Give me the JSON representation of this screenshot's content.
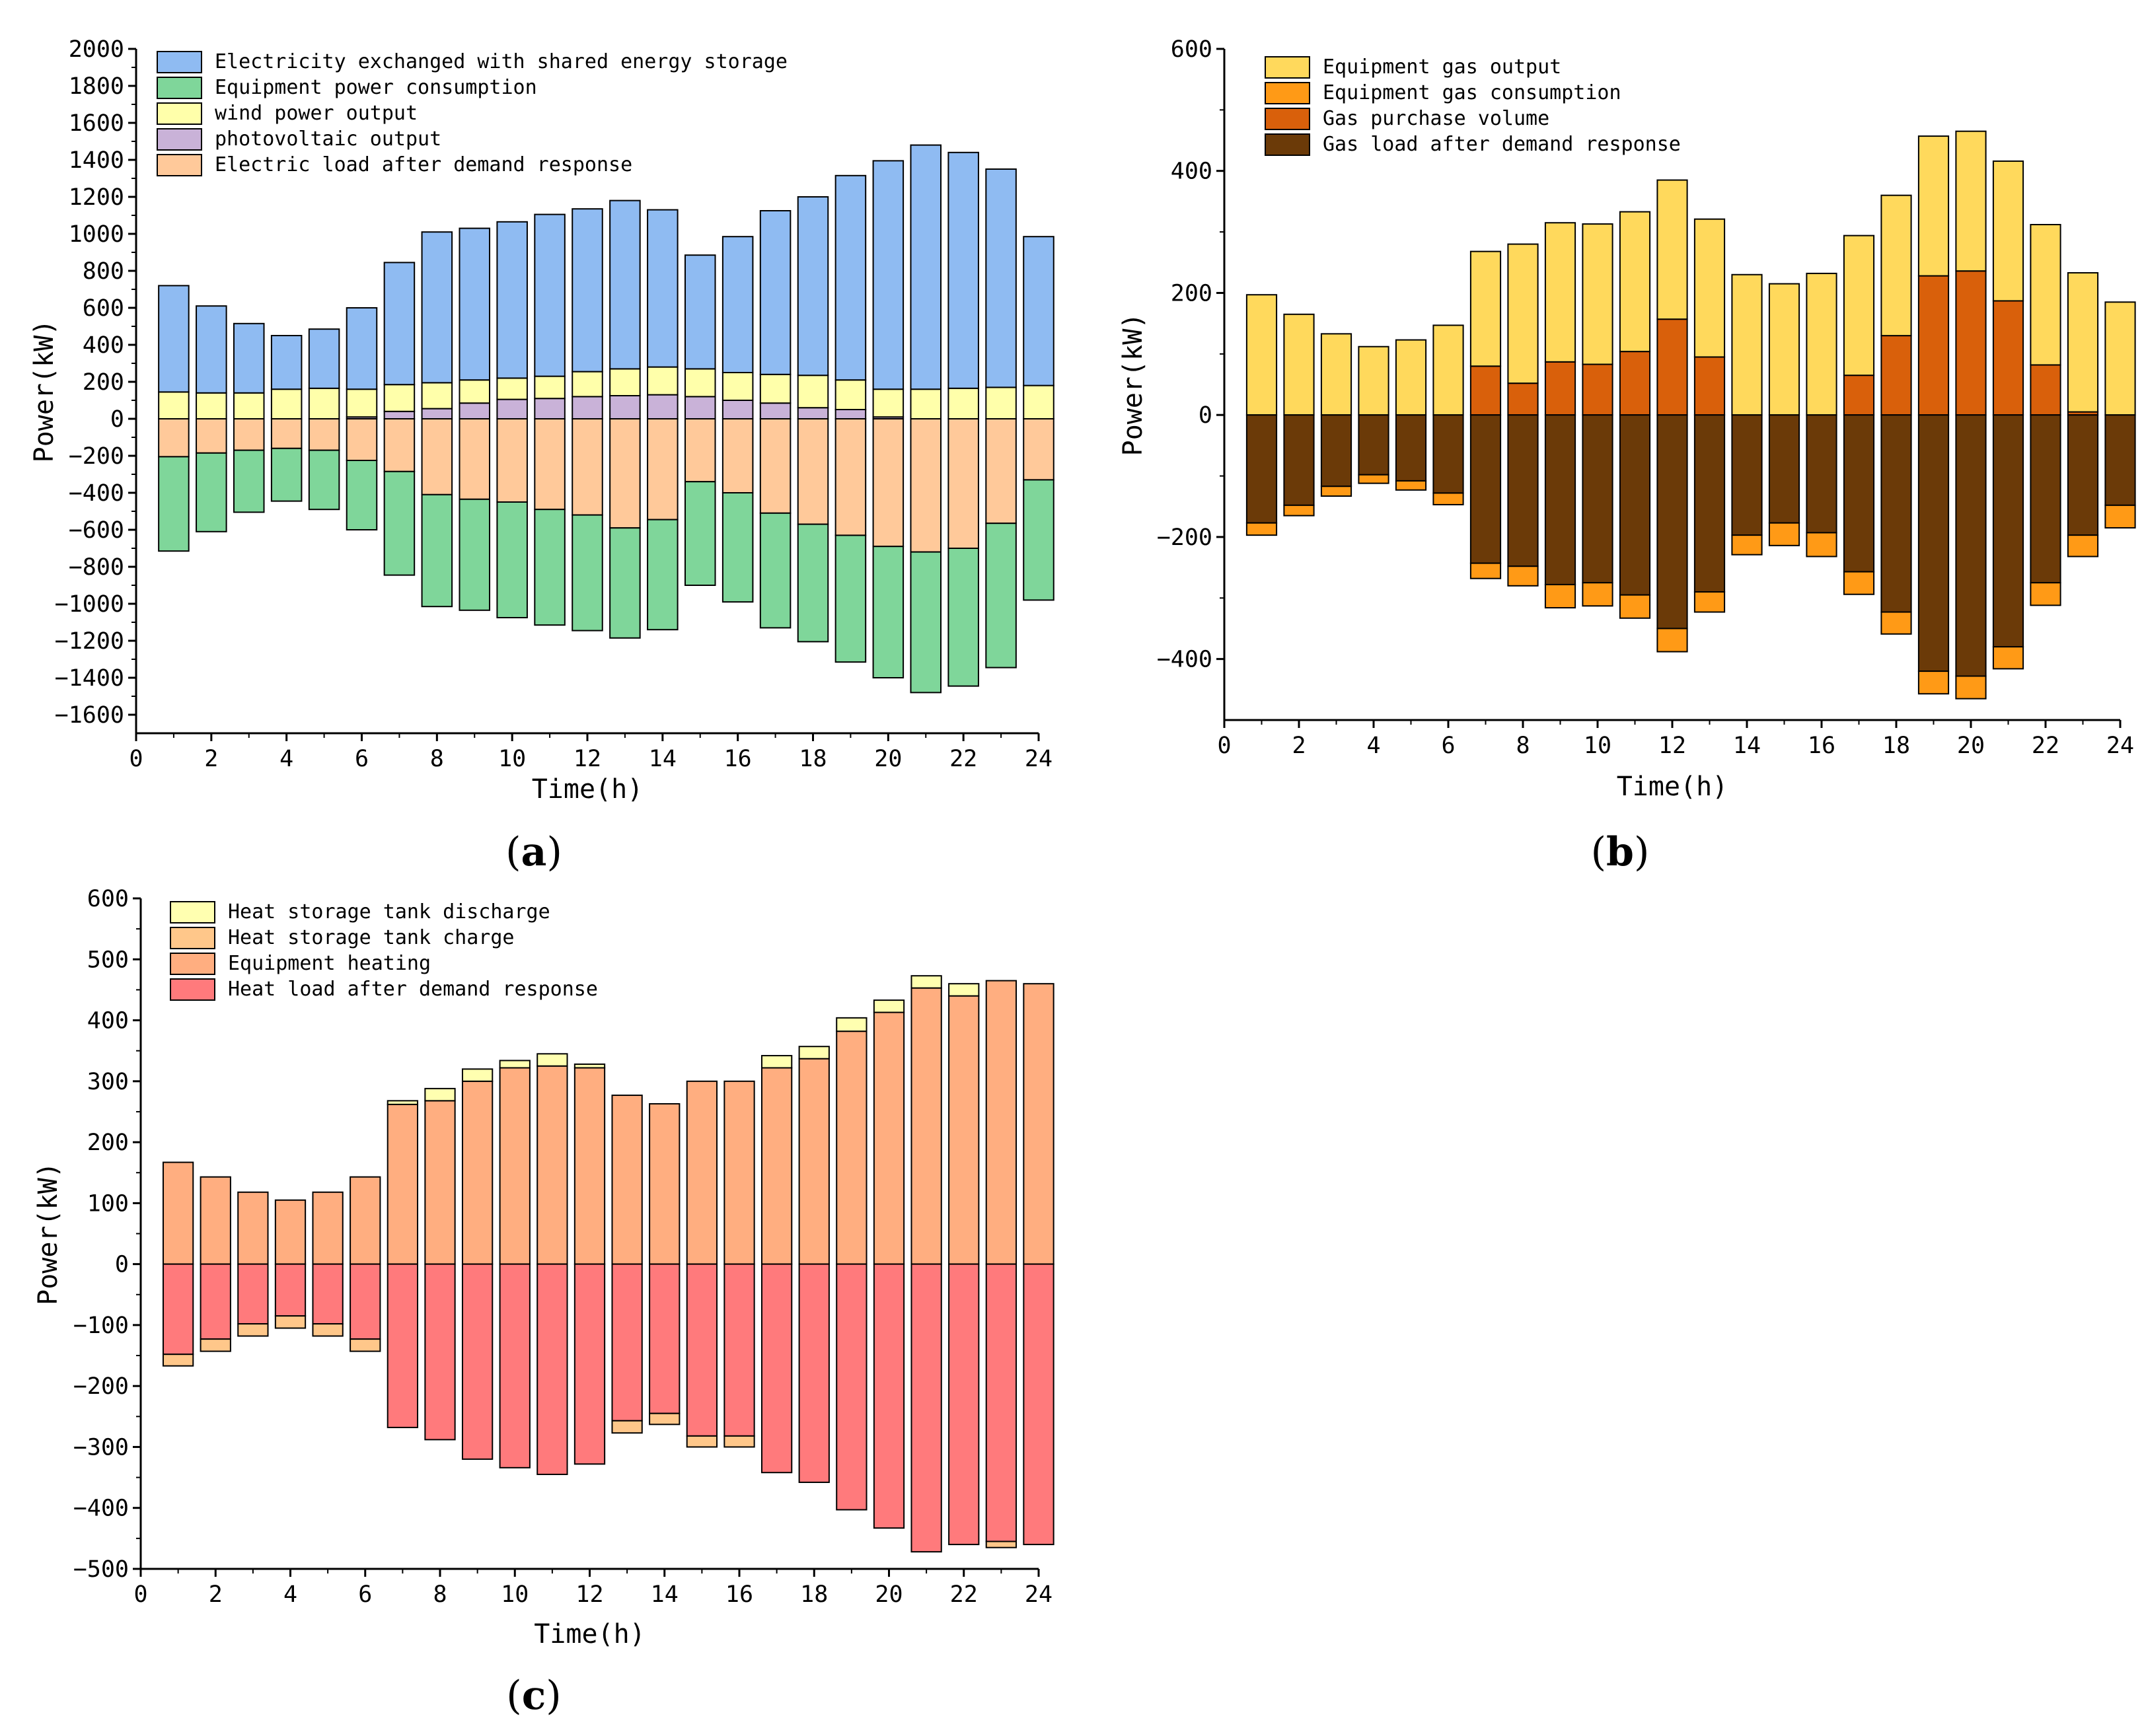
{
  "chart_data": [
    {
      "type": "bar",
      "id": "a",
      "panel_label": "a",
      "xlabel": "Time(h)",
      "ylabel": "Power(kW)",
      "xlim": [
        0,
        24
      ],
      "ylim": [
        -1700,
        2000
      ],
      "yticks": [
        2000,
        1800,
        1600,
        1400,
        1200,
        1000,
        800,
        600,
        400,
        200,
        0,
        -200,
        -400,
        -600,
        -800,
        -1000,
        -1200,
        -1400,
        -1600
      ],
      "xticks": [
        0,
        2,
        4,
        6,
        8,
        10,
        12,
        14,
        16,
        18,
        20,
        22,
        24
      ],
      "legend_position": "top-left",
      "categories": [
        1,
        2,
        3,
        4,
        5,
        6,
        7,
        8,
        9,
        10,
        11,
        12,
        13,
        14,
        15,
        16,
        17,
        18,
        19,
        20,
        21,
        22,
        23,
        24
      ],
      "positive_series": [
        {
          "name": "photovoltaic output",
          "color": "#C9B2D8",
          "values": [
            0,
            0,
            0,
            0,
            0,
            10,
            40,
            55,
            85,
            105,
            110,
            120,
            125,
            130,
            120,
            100,
            85,
            60,
            50,
            10,
            0,
            0,
            0,
            0
          ]
        },
        {
          "name": "wind power output",
          "color": "#FFFFAA",
          "values": [
            145,
            140,
            140,
            160,
            165,
            150,
            145,
            140,
            125,
            115,
            120,
            135,
            145,
            150,
            150,
            150,
            155,
            175,
            160,
            150,
            160,
            165,
            170,
            180
          ]
        },
        {
          "name": "Electricity exchanged with shared energy storage",
          "color": "#8FBBF2",
          "values": [
            575,
            470,
            375,
            290,
            320,
            440,
            660,
            815,
            820,
            845,
            875,
            880,
            910,
            850,
            615,
            735,
            885,
            965,
            1105,
            1235,
            1320,
            1275,
            1180,
            805
          ]
        }
      ],
      "negative_series": [
        {
          "name": "Electric load after demand response",
          "color": "#FFC99A",
          "values": [
            -205,
            -185,
            -170,
            -160,
            -170,
            -225,
            -285,
            -410,
            -435,
            -450,
            -490,
            -520,
            -590,
            -545,
            -340,
            -400,
            -510,
            -570,
            -630,
            -690,
            -720,
            -700,
            -565,
            -330
          ]
        },
        {
          "name": "Equipment power consumption",
          "color": "#7FD69A",
          "values": [
            -510,
            -425,
            -335,
            -285,
            -320,
            -375,
            -560,
            -605,
            -600,
            -625,
            -625,
            -625,
            -595,
            -595,
            -560,
            -590,
            -620,
            -635,
            -685,
            -710,
            -760,
            -745,
            -780,
            -650
          ]
        }
      ],
      "legend": [
        {
          "name": "Electricity exchanged with shared energy storage",
          "color": "#8FBBF2"
        },
        {
          "name": "Equipment power consumption",
          "color": "#7FD69A"
        },
        {
          "name": "wind power output",
          "color": "#FFFFAA"
        },
        {
          "name": "photovoltaic output",
          "color": "#C9B2D8"
        },
        {
          "name": "Electric load after demand response",
          "color": "#FFC99A"
        }
      ]
    },
    {
      "type": "bar",
      "id": "b",
      "panel_label": "b",
      "xlabel": "Time(h)",
      "ylabel": "Power(kW)",
      "xlim": [
        0,
        24
      ],
      "ylim": [
        -500,
        600
      ],
      "yticks": [
        600,
        400,
        200,
        0,
        -200,
        -400
      ],
      "xticks": [
        0,
        2,
        4,
        6,
        8,
        10,
        12,
        14,
        16,
        18,
        20,
        22,
        24
      ],
      "legend_position": "top-left",
      "categories": [
        1,
        2,
        3,
        4,
        5,
        6,
        7,
        8,
        9,
        10,
        11,
        12,
        13,
        14,
        15,
        16,
        17,
        18,
        19,
        20,
        21,
        22,
        23,
        24
      ],
      "positive_series": [
        {
          "name": "Gas purchase volume",
          "color": "#D9600B",
          "values": [
            0,
            0,
            0,
            0,
            0,
            0,
            80,
            52,
            87,
            83,
            104,
            157,
            95,
            0,
            0,
            0,
            65,
            130,
            228,
            236,
            187,
            82,
            5,
            0
          ]
        },
        {
          "name": "Equipment gas output",
          "color": "#FFD95C",
          "values": [
            197,
            165,
            133,
            112,
            123,
            147,
            188,
            228,
            228,
            230,
            229,
            228,
            226,
            230,
            215,
            232,
            229,
            230,
            229,
            229,
            229,
            230,
            228,
            185
          ]
        }
      ],
      "negative_series": [
        {
          "name": "Gas load after demand response",
          "color": "#6B3A08",
          "values": [
            -177,
            -148,
            -117,
            -98,
            -108,
            -128,
            -243,
            -248,
            -278,
            -275,
            -295,
            -350,
            -290,
            -197,
            -177,
            -193,
            -257,
            -323,
            -420,
            -428,
            -380,
            -275,
            -197,
            -148
          ]
        },
        {
          "name": "Equipment gas consumption",
          "color": "#FF9A16",
          "values": [
            -20,
            -17,
            -16,
            -14,
            -15,
            -19,
            -25,
            -32,
            -38,
            -38,
            -38,
            -38,
            -33,
            -32,
            -37,
            -39,
            -37,
            -36,
            -37,
            -37,
            -36,
            -37,
            -35,
            -37
          ]
        }
      ],
      "legend": [
        {
          "name": "Equipment gas output",
          "color": "#FFD95C"
        },
        {
          "name": "Equipment gas consumption",
          "color": "#FF9A16"
        },
        {
          "name": "Gas purchase volume",
          "color": "#D9600B"
        },
        {
          "name": "Gas load after demand response",
          "color": "#6B3A08"
        }
      ]
    },
    {
      "type": "bar",
      "id": "c",
      "panel_label": "c",
      "xlabel": "Time(h)",
      "ylabel": "Power(kW)",
      "xlim": [
        0,
        24
      ],
      "ylim": [
        -500,
        600
      ],
      "yticks": [
        600,
        500,
        400,
        300,
        200,
        100,
        0,
        -100,
        -200,
        -300,
        -400,
        -500
      ],
      "xticks": [
        0,
        2,
        4,
        6,
        8,
        10,
        12,
        14,
        16,
        18,
        20,
        22,
        24
      ],
      "legend_position": "top-left",
      "categories": [
        1,
        2,
        3,
        4,
        5,
        6,
        7,
        8,
        9,
        10,
        11,
        12,
        13,
        14,
        15,
        16,
        17,
        18,
        19,
        20,
        21,
        22,
        23,
        24
      ],
      "positive_series": [
        {
          "name": "Equipment heating",
          "color": "#FFAE80",
          "values": [
            167,
            143,
            118,
            105,
            118,
            143,
            262,
            268,
            300,
            322,
            325,
            322,
            277,
            263,
            300,
            300,
            322,
            337,
            382,
            413,
            453,
            440,
            465,
            460
          ]
        },
        {
          "name": "Heat storage tank discharge",
          "color": "#FFFFB0",
          "values": [
            0,
            0,
            0,
            0,
            0,
            0,
            6,
            20,
            20,
            12,
            20,
            6,
            0,
            0,
            0,
            0,
            20,
            20,
            22,
            20,
            20,
            20,
            0,
            0
          ]
        }
      ],
      "negative_series": [
        {
          "name": "Heat load after demand response",
          "color": "#FF7A7C",
          "values": [
            -148,
            -123,
            -98,
            -85,
            -98,
            -123,
            -268,
            -288,
            -320,
            -334,
            -345,
            -328,
            -257,
            -245,
            -282,
            -282,
            -342,
            -358,
            -403,
            -433,
            -472,
            -460,
            -455,
            -460
          ]
        },
        {
          "name": "Heat storage tank charge",
          "color": "#FFC78A",
          "values": [
            -19,
            -20,
            -20,
            -20,
            -20,
            -20,
            0,
            0,
            0,
            0,
            0,
            0,
            -20,
            -18,
            -18,
            -18,
            0,
            0,
            0,
            0,
            0,
            0,
            -10,
            0
          ]
        }
      ],
      "legend": [
        {
          "name": "Heat storage tank discharge",
          "color": "#FFFFB0"
        },
        {
          "name": "Heat storage tank charge",
          "color": "#FFC78A"
        },
        {
          "name": "Equipment heating",
          "color": "#FFAE80"
        },
        {
          "name": "Heat load after demand response",
          "color": "#FF7A7C"
        }
      ]
    }
  ]
}
